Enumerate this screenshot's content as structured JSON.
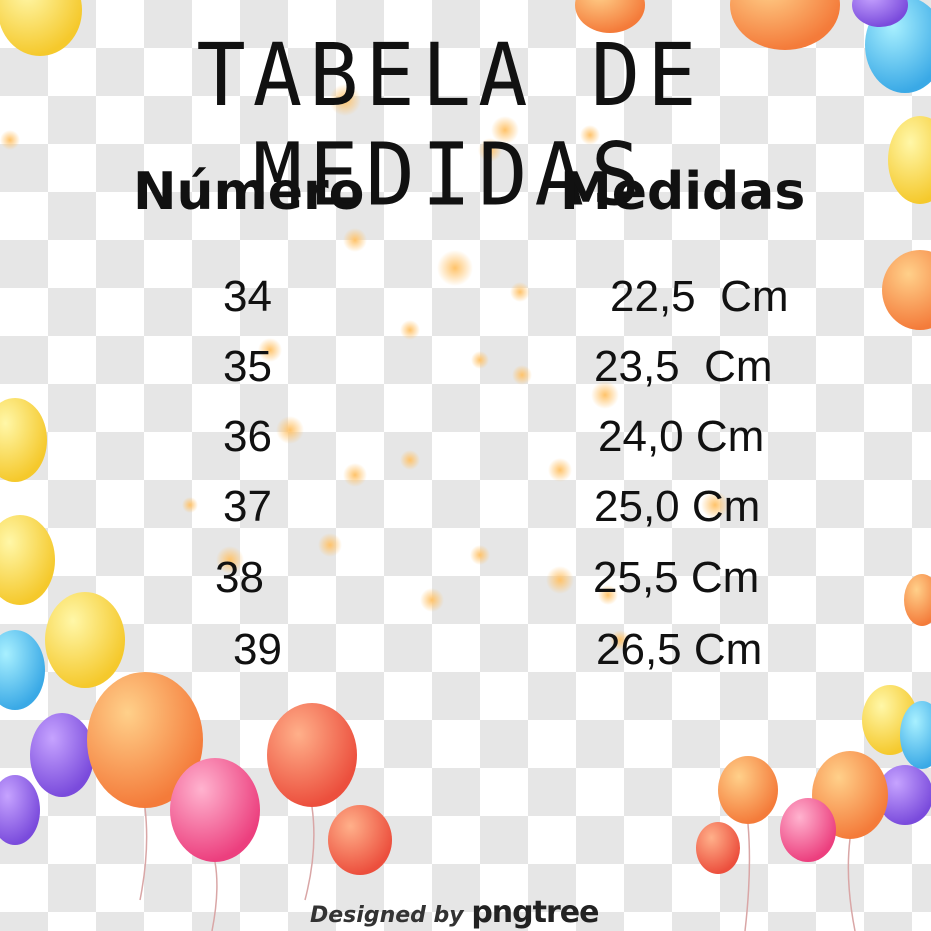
{
  "title": "TABELA DE MEDIDAS",
  "headers": {
    "number": "Número",
    "measure": "Medidas"
  },
  "rows": [
    {
      "number": "34",
      "measure": "22,5  Cm"
    },
    {
      "number": "35",
      "measure": "23,5  Cm"
    },
    {
      "number": "36",
      "measure": "24,0 Cm"
    },
    {
      "number": "37",
      "measure": "25,0 Cm"
    },
    {
      "number": "38",
      "measure": "25,5 Cm"
    },
    {
      "number": "39",
      "measure": "26,5 Cm"
    }
  ],
  "footer": {
    "prefix": "Designed by",
    "brand": "pngtree"
  },
  "colors": {
    "text": "#111111",
    "checker": "#e6e6e6"
  },
  "icons": [
    "balloon-icon"
  ]
}
